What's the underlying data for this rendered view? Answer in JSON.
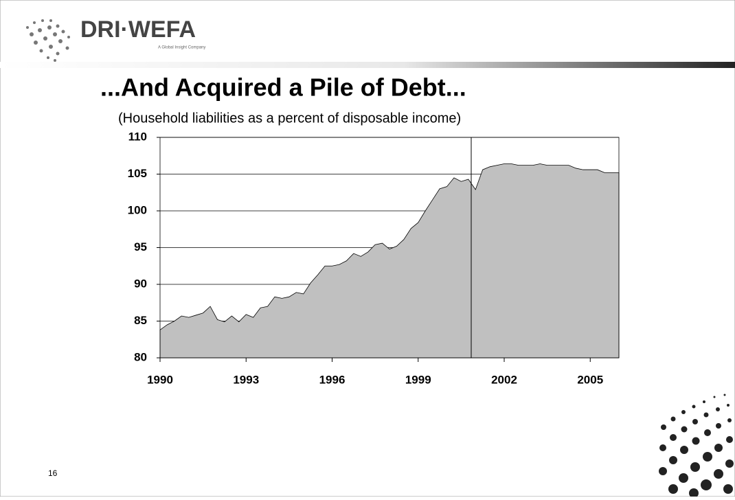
{
  "header": {
    "logo": "DRI·WEFA",
    "tagline": "A Global Insight Company"
  },
  "page_number": "16",
  "chart_data": {
    "type": "area",
    "title": "...And Acquired a Pile of Debt...",
    "subtitle": "(Household liabilities as a percent of disposable income)",
    "x": [
      1990,
      1990.25,
      1990.5,
      1990.75,
      1991,
      1991.25,
      1991.5,
      1991.75,
      1992,
      1992.25,
      1992.5,
      1992.75,
      1993,
      1993.25,
      1993.5,
      1993.75,
      1994,
      1994.25,
      1994.5,
      1994.75,
      1995,
      1995.25,
      1995.5,
      1995.75,
      1996,
      1996.25,
      1996.5,
      1996.75,
      1997,
      1997.25,
      1997.5,
      1997.75,
      1998,
      1998.25,
      1998.5,
      1998.75,
      1999,
      1999.25,
      1999.5,
      1999.75,
      2000,
      2000.25,
      2000.5,
      2000.75,
      2001,
      2001.25,
      2001.5,
      2001.75,
      2002,
      2002.25,
      2002.5,
      2002.75,
      2003,
      2003.25,
      2003.5,
      2003.75,
      2004,
      2004.25,
      2004.5,
      2004.75,
      2005,
      2005.25,
      2005.5,
      2005.75,
      2006
    ],
    "values": [
      83.8,
      84.5,
      85.0,
      85.7,
      85.5,
      85.8,
      86.1,
      87.0,
      85.2,
      84.9,
      85.7,
      84.9,
      85.9,
      85.5,
      86.8,
      87.0,
      88.3,
      88.1,
      88.3,
      88.9,
      88.7,
      90.2,
      91.3,
      92.5,
      92.5,
      92.7,
      93.2,
      94.2,
      93.8,
      94.4,
      95.4,
      95.6,
      94.8,
      95.2,
      96.1,
      97.6,
      98.4,
      100.0,
      101.5,
      103.0,
      103.3,
      104.5,
      104.0,
      104.3,
      102.9,
      105.6,
      106.0,
      106.2,
      106.4,
      106.4,
      106.2,
      106.2,
      106.2,
      106.4,
      106.2,
      106.2,
      106.2,
      106.2,
      105.8,
      105.6,
      105.6,
      105.6,
      105.2,
      105.2,
      105.2
    ],
    "color": "#c0c0c0",
    "xlim": [
      1990,
      2006
    ],
    "xticks": [
      1990,
      1993,
      1996,
      1999,
      2002,
      2005
    ],
    "ylim": [
      80,
      110
    ],
    "yticks": [
      80,
      85,
      90,
      95,
      100,
      105,
      110
    ],
    "grid": true,
    "divider_x": 2000.85
  }
}
